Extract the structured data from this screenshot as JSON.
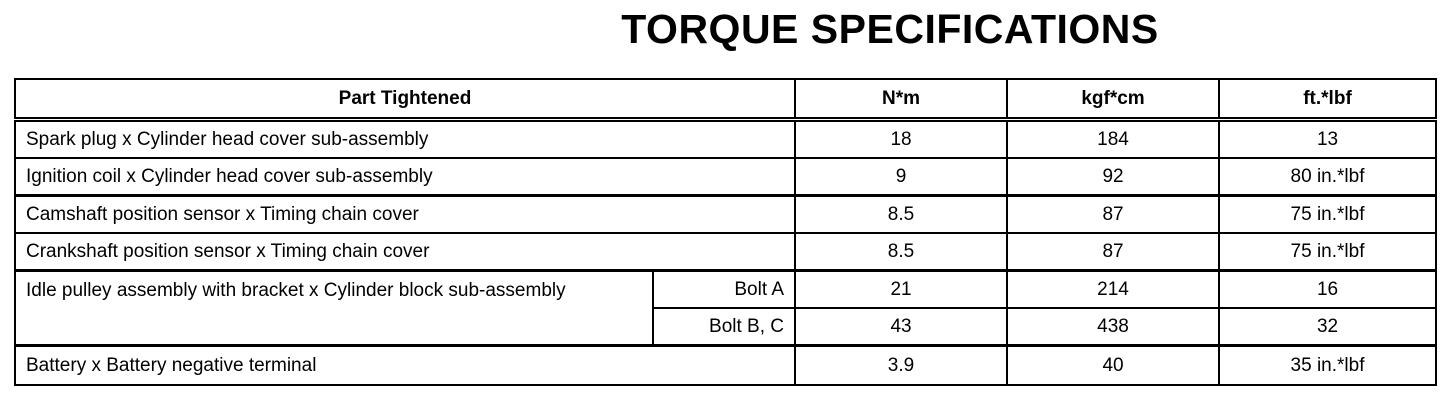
{
  "title": "TORQUE SPECIFICATIONS",
  "table": {
    "headers": [
      "Part Tightened",
      "N*m",
      "kgf*cm",
      "ft.*lbf"
    ],
    "rows": [
      {
        "part": "Spark plug x Cylinder head cover sub-assembly",
        "nm": "18",
        "kgfcm": "184",
        "ftlbf": "13"
      },
      {
        "part": "Ignition coil x Cylinder head cover sub-assembly",
        "nm": "9",
        "kgfcm": "92",
        "ftlbf": "80 in.*lbf"
      },
      {
        "part": "Camshaft position sensor x Timing chain cover",
        "nm": "8.5",
        "kgfcm": "87",
        "ftlbf": "75 in.*lbf"
      },
      {
        "part": "Crankshaft position sensor x Timing chain cover",
        "nm": "8.5",
        "kgfcm": "87",
        "ftlbf": "75 in.*lbf"
      },
      {
        "part": "Idle pulley assembly with bracket x Cylinder block sub-assembly",
        "sub": [
          {
            "bolt": "Bolt A",
            "nm": "21",
            "kgfcm": "214",
            "ftlbf": "16"
          },
          {
            "bolt": "Bolt B, C",
            "nm": "43",
            "kgfcm": "438",
            "ftlbf": "32"
          }
        ]
      },
      {
        "part": "Battery x Battery negative terminal",
        "nm": "3.9",
        "kgfcm": "40",
        "ftlbf": "35 in.*lbf"
      }
    ]
  }
}
